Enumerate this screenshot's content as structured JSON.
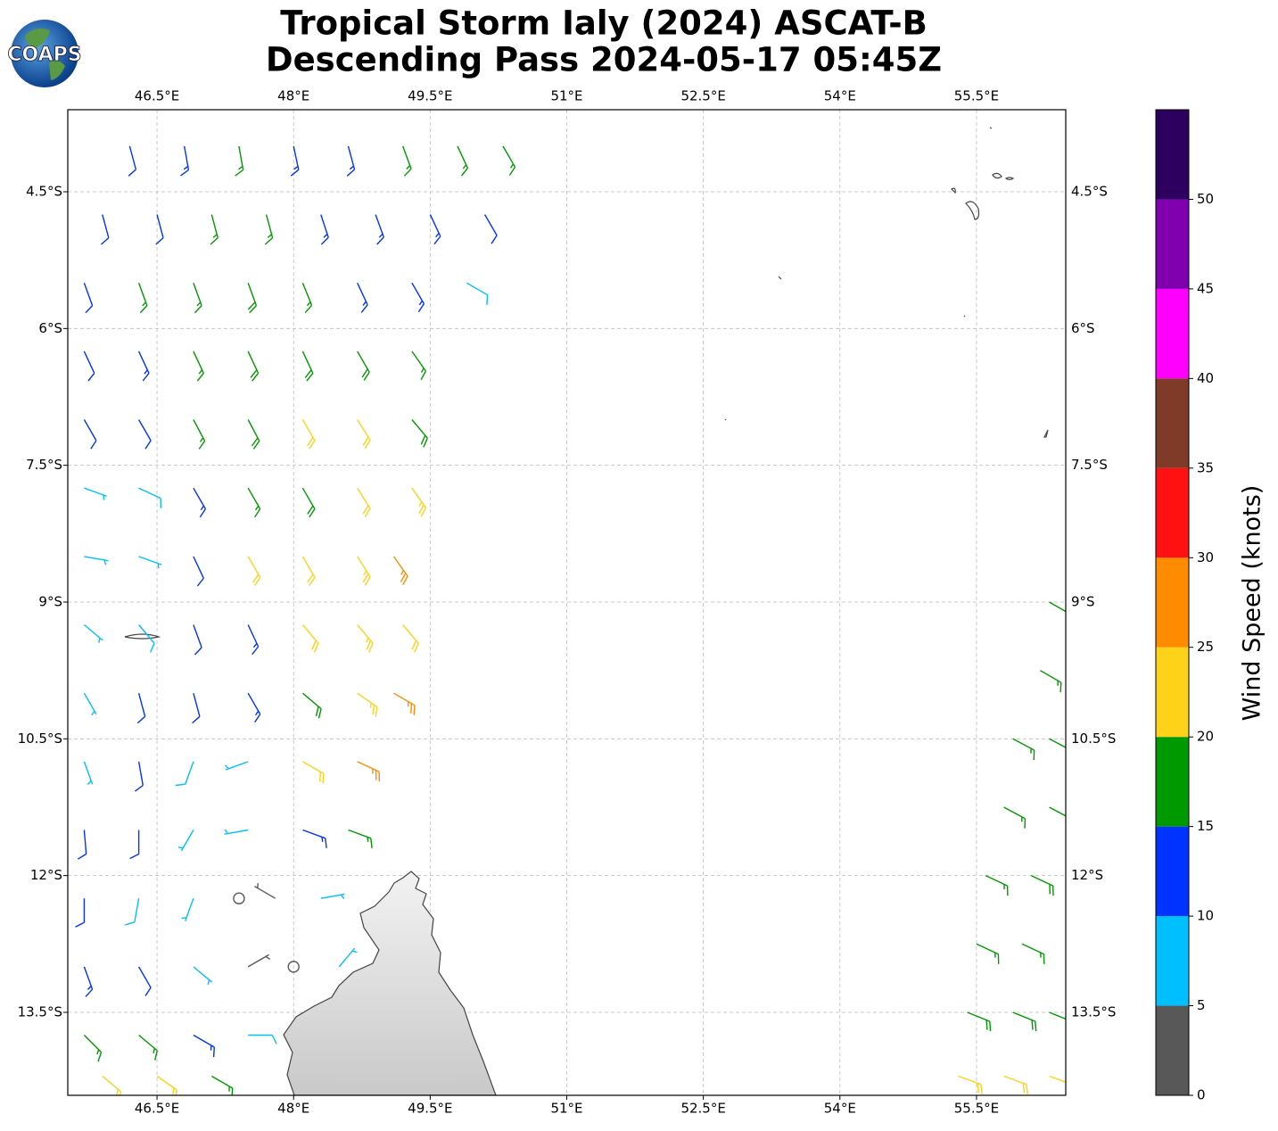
{
  "chart_data": {
    "type": "barbs",
    "title": "Tropical Storm Ialy (2024) ASCAT-B",
    "subtitle": "Descending Pass 2024-05-17 05:45Z",
    "logo_text": "COAPS",
    "xlim": [
      45.52,
      56.48
    ],
    "ylim": [
      -14.41,
      -3.6
    ],
    "grid": true,
    "xticks": [
      {
        "value": 46.5,
        "label": "46.5°E"
      },
      {
        "value": 48,
        "label": "48°E"
      },
      {
        "value": 49.5,
        "label": "49.5°E"
      },
      {
        "value": 51,
        "label": "51°E"
      },
      {
        "value": 52.5,
        "label": "52.5°E"
      },
      {
        "value": 54,
        "label": "54°E"
      },
      {
        "value": 55.5,
        "label": "55.5°E"
      }
    ],
    "yticks": [
      {
        "value": -4.5,
        "label": "4.5°S"
      },
      {
        "value": -6,
        "label": "6°S"
      },
      {
        "value": -7.5,
        "label": "7.5°S"
      },
      {
        "value": -9,
        "label": "9°S"
      },
      {
        "value": -10.5,
        "label": "10.5°S"
      },
      {
        "value": -12,
        "label": "12°S"
      },
      {
        "value": -13.5,
        "label": "13.5°S"
      }
    ],
    "colorbar": {
      "label": "Wind Speed (knots)",
      "lim": [
        0,
        55
      ],
      "ticks": [
        0,
        5,
        10,
        15,
        20,
        25,
        30,
        35,
        40,
        45,
        50
      ],
      "bounds": [
        0,
        5,
        10,
        15,
        20,
        25,
        30,
        35,
        40,
        45,
        50,
        55
      ],
      "colors": [
        "#585858",
        "#00bfff",
        "#0033ff",
        "#009900",
        "#ffd21a",
        "#ff8c00",
        "#ff1111",
        "#7f3a28",
        "#ff00ff",
        "#8000b0",
        "#2d005f"
      ]
    },
    "barbs": [
      [
        46.2,
        -4.0,
        12,
        165
      ],
      [
        46.8,
        -4.0,
        13,
        170
      ],
      [
        47.4,
        -4.0,
        16,
        170
      ],
      [
        48.0,
        -4.0,
        14,
        168
      ],
      [
        48.6,
        -4.0,
        14,
        165
      ],
      [
        49.2,
        -4.0,
        16,
        160
      ],
      [
        49.8,
        -4.0,
        17,
        155
      ],
      [
        50.3,
        -4.0,
        16,
        150
      ],
      [
        45.9,
        -4.75,
        12,
        165
      ],
      [
        46.5,
        -4.75,
        12,
        165
      ],
      [
        47.1,
        -4.75,
        16,
        165
      ],
      [
        47.7,
        -4.75,
        17,
        165
      ],
      [
        48.3,
        -4.75,
        14,
        162
      ],
      [
        48.9,
        -4.75,
        14,
        160
      ],
      [
        49.5,
        -4.75,
        13,
        155
      ],
      [
        50.1,
        -4.75,
        12,
        150
      ],
      [
        45.7,
        -5.5,
        11,
        160
      ],
      [
        46.3,
        -5.5,
        16,
        160
      ],
      [
        46.9,
        -5.5,
        17,
        160
      ],
      [
        47.5,
        -5.5,
        18,
        160
      ],
      [
        48.1,
        -5.5,
        17,
        158
      ],
      [
        48.7,
        -5.5,
        14,
        155
      ],
      [
        49.3,
        -5.5,
        14,
        150
      ],
      [
        49.9,
        -5.5,
        8,
        120
      ],
      [
        45.7,
        -6.25,
        12,
        155
      ],
      [
        46.3,
        -6.25,
        13,
        155
      ],
      [
        46.9,
        -6.25,
        16,
        155
      ],
      [
        47.5,
        -6.25,
        18,
        155
      ],
      [
        48.1,
        -6.25,
        19,
        155
      ],
      [
        48.7,
        -6.25,
        18,
        150
      ],
      [
        49.3,
        -6.25,
        17,
        145
      ],
      [
        45.7,
        -7.0,
        12,
        150
      ],
      [
        46.3,
        -7.0,
        12,
        150
      ],
      [
        46.9,
        -7.0,
        17,
        152
      ],
      [
        47.5,
        -7.0,
        18,
        152
      ],
      [
        48.1,
        -7.0,
        21,
        150
      ],
      [
        48.7,
        -7.0,
        22,
        148
      ],
      [
        49.3,
        -7.0,
        19,
        140
      ],
      [
        45.7,
        -7.75,
        7,
        110
      ],
      [
        46.3,
        -7.75,
        8,
        115
      ],
      [
        46.9,
        -7.75,
        13,
        150
      ],
      [
        47.5,
        -7.75,
        17,
        150
      ],
      [
        48.1,
        -7.75,
        18,
        150
      ],
      [
        48.7,
        -7.75,
        22,
        148
      ],
      [
        49.3,
        -7.75,
        23,
        145
      ],
      [
        45.7,
        -8.5,
        6,
        100
      ],
      [
        46.3,
        -8.5,
        7,
        110
      ],
      [
        46.9,
        -8.5,
        12,
        155
      ],
      [
        47.5,
        -8.5,
        21,
        150
      ],
      [
        48.1,
        -8.5,
        22,
        150
      ],
      [
        48.7,
        -8.5,
        24,
        148
      ],
      [
        49.1,
        -8.5,
        26,
        145
      ],
      [
        45.7,
        -9.25,
        7,
        130
      ],
      [
        46.3,
        -9.25,
        8,
        140
      ],
      [
        46.9,
        -9.25,
        11,
        160
      ],
      [
        47.5,
        -9.25,
        13,
        155
      ],
      [
        48.1,
        -9.25,
        21,
        140
      ],
      [
        48.7,
        -9.25,
        23,
        140
      ],
      [
        49.2,
        -9.25,
        22,
        140
      ],
      [
        45.7,
        -10.0,
        6,
        150
      ],
      [
        46.3,
        -10.0,
        11,
        165
      ],
      [
        46.9,
        -10.0,
        12,
        165
      ],
      [
        47.5,
        -10.0,
        13,
        150
      ],
      [
        48.1,
        -10.0,
        18,
        130
      ],
      [
        48.7,
        -10.0,
        23,
        125
      ],
      [
        49.1,
        -10.0,
        27,
        120
      ],
      [
        45.7,
        -10.75,
        7,
        160
      ],
      [
        46.3,
        -10.75,
        12,
        170
      ],
      [
        46.9,
        -10.75,
        8,
        200
      ],
      [
        47.5,
        -10.75,
        7,
        250
      ],
      [
        48.1,
        -10.75,
        21,
        120
      ],
      [
        48.7,
        -10.75,
        27,
        115
      ],
      [
        45.7,
        -11.5,
        11,
        175
      ],
      [
        46.3,
        -11.5,
        12,
        180
      ],
      [
        46.9,
        -11.5,
        7,
        210
      ],
      [
        47.5,
        -11.5,
        6,
        260
      ],
      [
        48.1,
        -11.5,
        13,
        110
      ],
      [
        48.6,
        -11.5,
        17,
        110
      ],
      [
        45.7,
        -12.25,
        12,
        180
      ],
      [
        46.3,
        -12.25,
        8,
        190
      ],
      [
        46.9,
        -12.25,
        6,
        200
      ],
      [
        47.4,
        -12.25,
        2,
        0
      ],
      [
        47.8,
        -12.25,
        3,
        300
      ],
      [
        48.3,
        -12.25,
        7,
        80
      ],
      [
        45.7,
        -13.0,
        13,
        160
      ],
      [
        46.3,
        -13.0,
        12,
        150
      ],
      [
        46.9,
        -13.0,
        7,
        130
      ],
      [
        47.5,
        -13.0,
        4,
        60
      ],
      [
        48.0,
        -13.0,
        2,
        0
      ],
      [
        48.5,
        -13.0,
        6,
        40
      ],
      [
        45.7,
        -13.75,
        16,
        135
      ],
      [
        46.3,
        -13.75,
        17,
        130
      ],
      [
        46.9,
        -13.75,
        13,
        120
      ],
      [
        47.5,
        -13.75,
        8,
        90
      ],
      [
        45.9,
        -14.2,
        22,
        130
      ],
      [
        46.5,
        -14.2,
        21,
        125
      ],
      [
        47.1,
        -14.2,
        17,
        120
      ],
      [
        56.3,
        -9.0,
        17,
        120
      ],
      [
        56.2,
        -9.75,
        17,
        120
      ],
      [
        55.9,
        -10.5,
        16,
        118
      ],
      [
        56.3,
        -10.5,
        17,
        118
      ],
      [
        55.8,
        -11.25,
        17,
        118
      ],
      [
        56.3,
        -11.25,
        18,
        118
      ],
      [
        55.6,
        -12.0,
        17,
        115
      ],
      [
        56.1,
        -12.0,
        18,
        115
      ],
      [
        55.5,
        -12.75,
        17,
        115
      ],
      [
        56.0,
        -12.75,
        17,
        115
      ],
      [
        55.4,
        -13.5,
        18,
        112
      ],
      [
        55.9,
        -13.5,
        18,
        112
      ],
      [
        56.3,
        -13.5,
        19,
        112
      ],
      [
        55.3,
        -14.2,
        21,
        110
      ],
      [
        55.8,
        -14.2,
        22,
        110
      ],
      [
        56.3,
        -14.2,
        21,
        110
      ]
    ]
  }
}
